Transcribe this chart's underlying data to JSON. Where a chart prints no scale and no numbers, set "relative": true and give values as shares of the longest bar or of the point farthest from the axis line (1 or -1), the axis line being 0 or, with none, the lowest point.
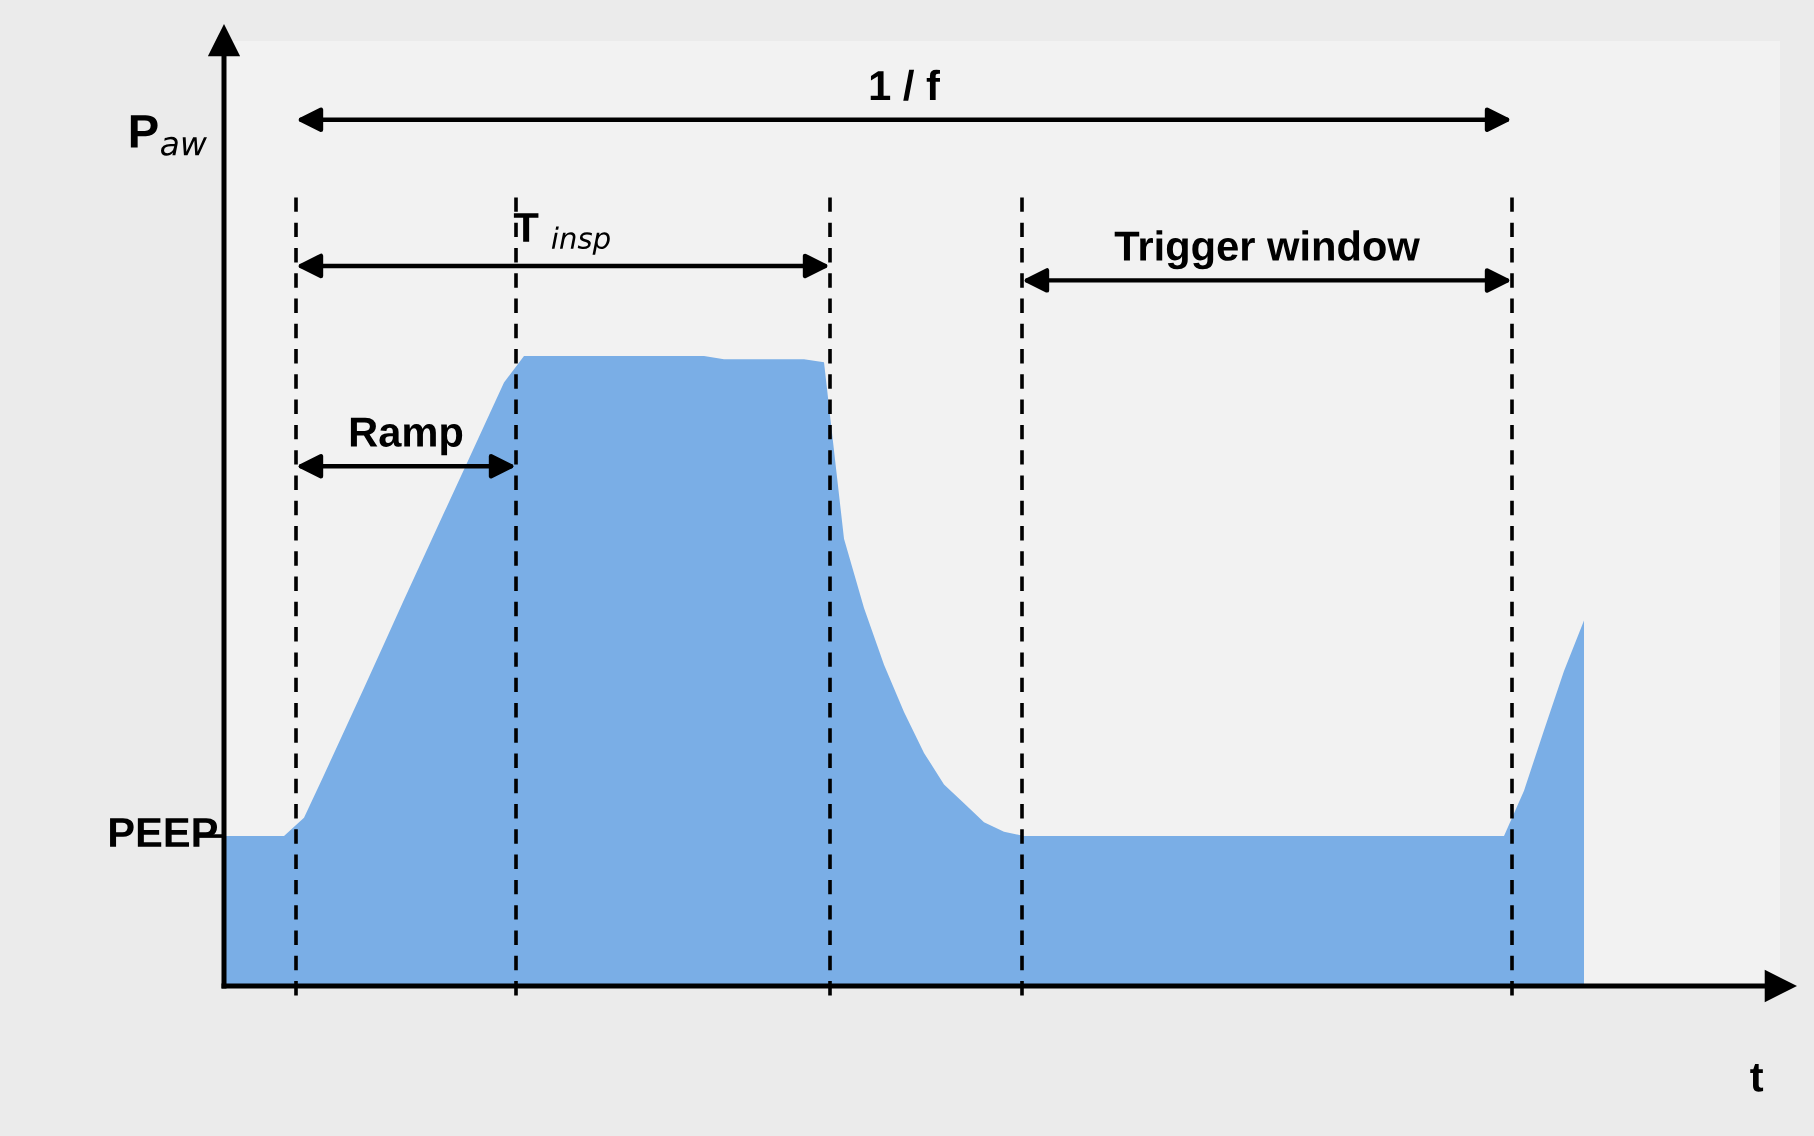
{
  "chart_data": {
    "type": "area",
    "relative": true,
    "color": "#7aaee6",
    "ylabel": "P$_{aw}$",
    "xlabel": "t",
    "tick_labels": false,
    "categories": [
      null,
      null,
      null,
      null,
      null,
      null,
      null,
      null,
      null,
      null,
      null,
      null,
      null,
      null,
      null,
      null,
      null,
      null,
      null,
      null,
      null,
      null,
      null,
      null,
      null,
      null,
      null,
      null,
      null,
      null,
      null,
      null,
      null,
      null,
      null,
      null,
      null,
      null,
      null,
      null,
      null,
      null,
      null,
      null,
      null,
      null,
      null,
      null,
      null,
      null,
      null,
      null,
      null,
      null,
      null,
      null,
      null,
      null,
      null,
      null,
      null,
      null,
      null,
      null,
      null,
      null,
      null,
      null,
      null
    ],
    "values": [
      0.238,
      0.238,
      0.238,
      0.238,
      0.267,
      0.335,
      0.404,
      0.473,
      0.543,
      0.613,
      0.682,
      0.751,
      0.82,
      0.889,
      0.958,
      1.0,
      1.0,
      1.0,
      1.0,
      1.0,
      1.0,
      1.0,
      1.0,
      1.0,
      1.0,
      0.995,
      0.995,
      0.995,
      0.995,
      0.995,
      0.99,
      0.71,
      0.6,
      0.51,
      0.435,
      0.37,
      0.32,
      0.29,
      0.26,
      0.245,
      0.238,
      0.238,
      0.238,
      0.238,
      0.238,
      0.238,
      0.238,
      0.238,
      0.238,
      0.238,
      0.238,
      0.238,
      0.238,
      0.238,
      0.238,
      0.238,
      0.238,
      0.238,
      0.238,
      0.238,
      0.238,
      0.238,
      0.238,
      0.238,
      0.238,
      0.31,
      0.406,
      0.5,
      0.58
    ],
    "annotations": [
      "1 / f",
      "T $_{insp}$",
      "Ramp",
      "Trigger window",
      "PEEP"
    ]
  }
}
